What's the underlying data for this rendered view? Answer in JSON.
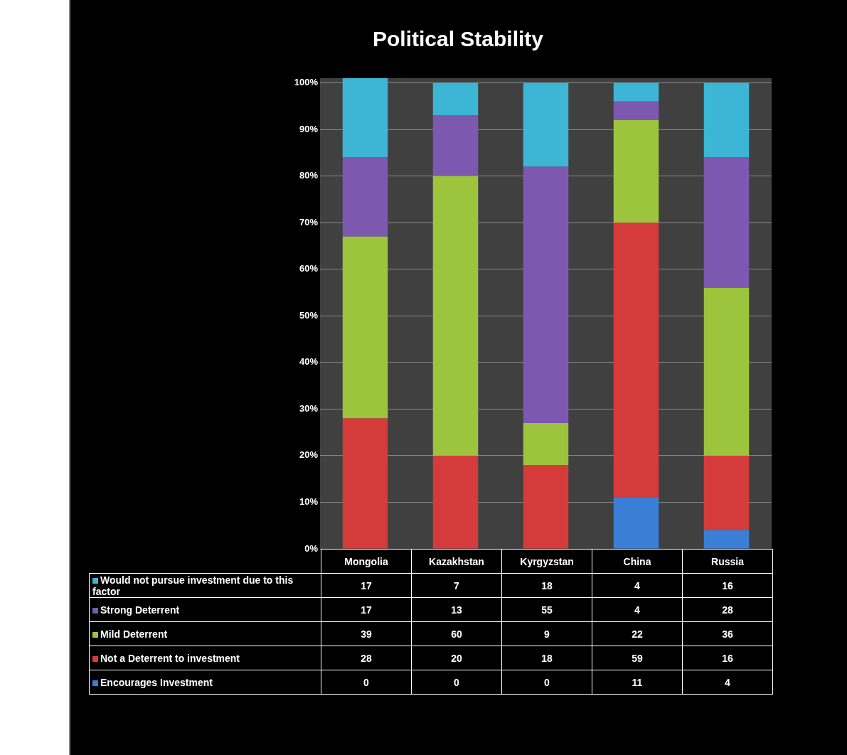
{
  "chart_data": {
    "type": "bar",
    "title": "Political Stability",
    "stacked": true,
    "categories": [
      "Mongolia",
      "Kazakhstan",
      "Kyrgyzstan",
      "China",
      "Russia"
    ],
    "series": [
      {
        "name": "Encourages Investment",
        "color": "#3a7fd5",
        "values": [
          0,
          0,
          0,
          11,
          4
        ]
      },
      {
        "name": "Not a Deterrent to investment",
        "color": "#d63b3b",
        "values": [
          28,
          20,
          18,
          59,
          16
        ]
      },
      {
        "name": "Mild Deterrent",
        "color": "#9cc43c",
        "values": [
          39,
          60,
          9,
          22,
          36
        ]
      },
      {
        "name": "Strong Deterrent",
        "color": "#7c58b0",
        "values": [
          17,
          13,
          55,
          4,
          28
        ]
      },
      {
        "name": "Would not pursue investment due to this factor",
        "color": "#3cb6d4",
        "values": [
          17,
          7,
          18,
          4,
          16
        ]
      }
    ],
    "ylim": [
      0,
      101
    ],
    "yticks": [
      {
        "value": 0,
        "label": "0%"
      },
      {
        "value": 10,
        "label": "10%"
      },
      {
        "value": 20,
        "label": "20%"
      },
      {
        "value": 30,
        "label": "30%"
      },
      {
        "value": 40,
        "label": "40%"
      },
      {
        "value": 50,
        "label": "50%"
      },
      {
        "value": 60,
        "label": "60%"
      },
      {
        "value": 70,
        "label": "70%"
      },
      {
        "value": 80,
        "label": "80%"
      },
      {
        "value": 90,
        "label": "90%"
      },
      {
        "value": 100,
        "label": "100%"
      }
    ],
    "grid": "y",
    "legend": "bottom",
    "data_labels": true
  }
}
